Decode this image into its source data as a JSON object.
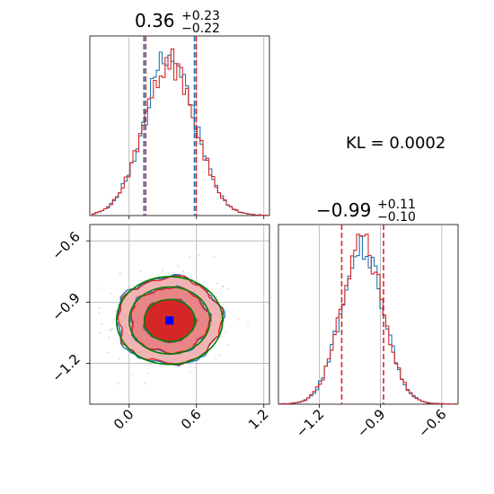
{
  "chart_data": {
    "type": "corner",
    "annotation": "KL = 0.0002",
    "colors": {
      "series_blue": "#1f77b4",
      "series_red": "#d62728",
      "contour_green": "#008000",
      "marker": "#0000ff"
    },
    "series": [
      {
        "color": "#1f77b4"
      },
      {
        "color": "#d62728"
      }
    ],
    "param1": {
      "title": {
        "value": "0.36",
        "sup": "+0.23",
        "sub": "−0.22"
      },
      "median": 0.36,
      "q_low": 0.14,
      "q_high": 0.59,
      "xlim": [
        -0.35,
        1.25
      ],
      "ticks": [
        0.0,
        0.6,
        1.2
      ],
      "tick_labels": [
        "0.0",
        "0.6",
        "1.2"
      ],
      "grid_x": [
        0.0,
        0.6,
        1.2
      ]
    },
    "param2": {
      "title": {
        "value": "−0.99",
        "sup": "+0.11",
        "sub": "−0.10"
      },
      "median": -0.99,
      "q_low": -1.09,
      "q_high": -0.885,
      "lim": [
        -1.4,
        -0.52
      ],
      "ticks": [
        -1.2,
        -0.9,
        -0.6
      ],
      "tick_labels": [
        "−1.2",
        "−0.9",
        "−0.6"
      ],
      "grid": [
        -1.2,
        -0.9,
        -0.6
      ]
    },
    "marker_point": {
      "x": 0.36,
      "y": -0.99
    },
    "contour_levels": [
      0.39,
      0.86,
      0.99
    ]
  }
}
